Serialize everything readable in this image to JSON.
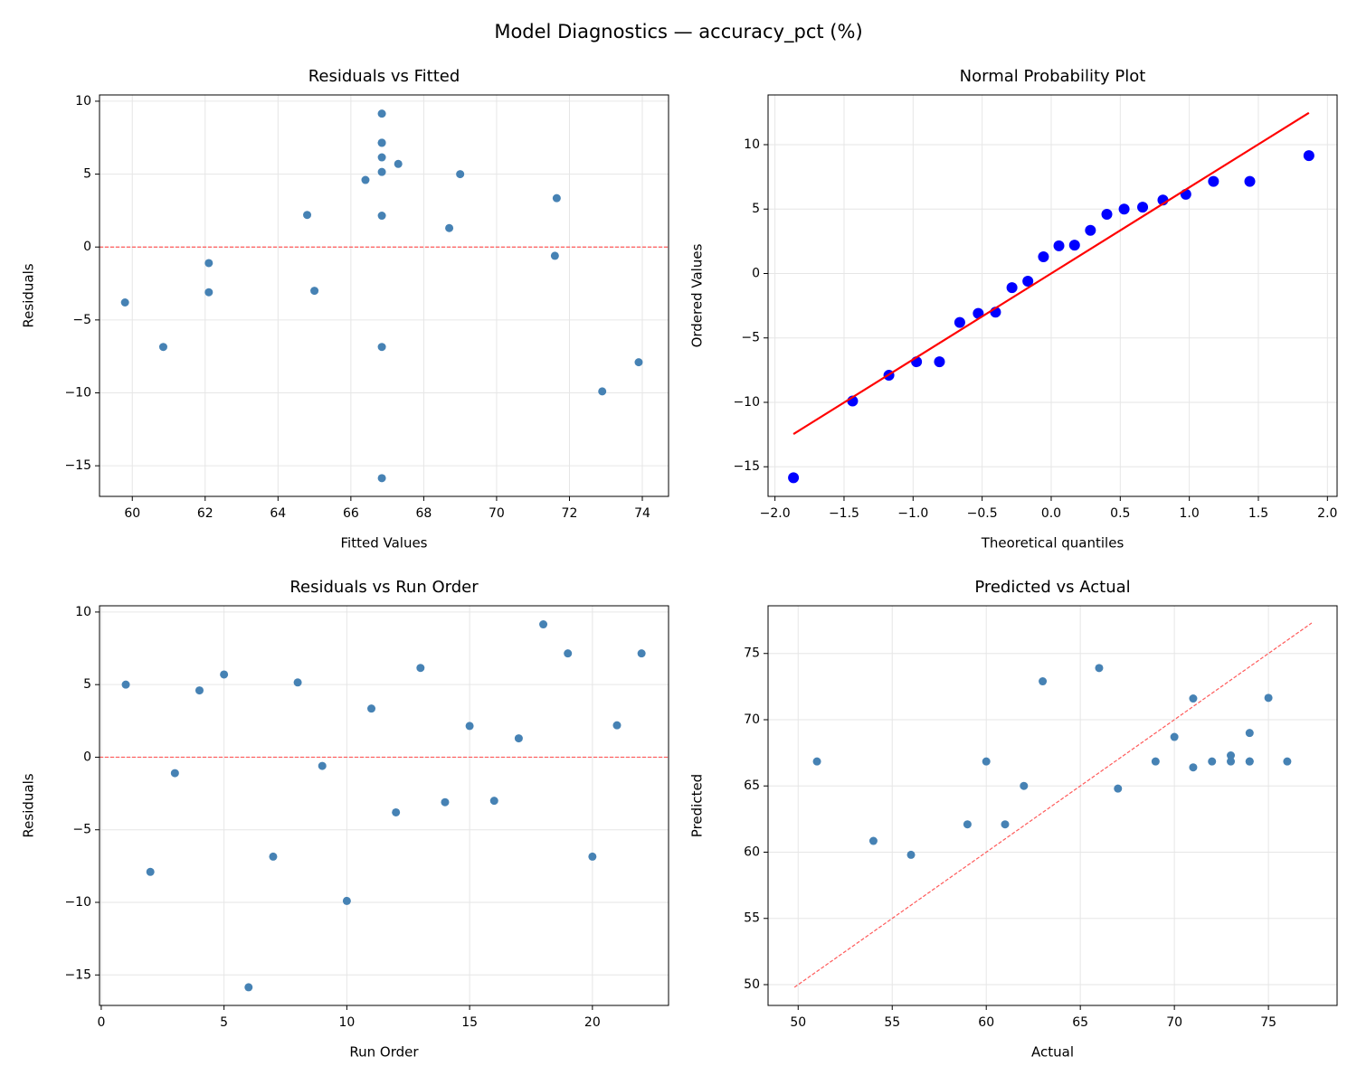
{
  "title": "Model Diagnostics — accuracy_pct (%)",
  "chart_data": [
    {
      "type": "scatter",
      "title": "Residuals vs Fitted",
      "xlabel": "Fitted Values",
      "ylabel": "Residuals",
      "x": [
        69.0,
        73.9,
        62.1,
        66.4,
        67.3,
        66.85,
        66.85,
        66.85,
        71.6,
        72.9,
        71.65,
        59.8,
        66.85,
        62.1,
        66.85,
        65.0,
        68.7,
        66.85,
        66.85,
        60.85,
        64.8,
        66.85
      ],
      "y": [
        5.0,
        -7.9,
        -1.1,
        4.6,
        5.7,
        -15.85,
        -6.85,
        5.15,
        -0.6,
        -9.9,
        3.35,
        -3.8,
        6.15,
        -3.1,
        2.15,
        -3.0,
        1.3,
        9.15,
        7.15,
        -6.85,
        2.2,
        7.15
      ],
      "color": "#4682b4",
      "hline": 0,
      "hline_color": "#ff5a5a",
      "xlim": [
        59.1,
        74.72
      ],
      "ylim": [
        -17.1,
        10.43
      ],
      "xticks": [
        60,
        62,
        64,
        66,
        68,
        70,
        72,
        74
      ],
      "yticks": [
        {
          "value": -15,
          "label": "−15"
        },
        {
          "value": -10,
          "label": "−10"
        },
        {
          "value": -5,
          "label": "−5"
        },
        0,
        5,
        10
      ],
      "grid": true
    },
    {
      "type": "scatter",
      "title": "Normal Probability Plot",
      "xlabel": "Theoretical quantiles",
      "ylabel": "Ordered Values",
      "x": [
        -1.866,
        -1.438,
        -1.175,
        -0.975,
        -0.809,
        -0.662,
        -0.528,
        -0.403,
        -0.284,
        -0.169,
        -0.056,
        0.056,
        0.169,
        0.284,
        0.403,
        0.528,
        0.662,
        0.809,
        0.975,
        1.175,
        1.438,
        1.866
      ],
      "y": [
        -15.85,
        -9.9,
        -7.9,
        -6.85,
        -6.85,
        -3.8,
        -3.1,
        -3.0,
        -1.1,
        -0.6,
        1.3,
        2.15,
        2.2,
        3.35,
        4.6,
        5.0,
        5.15,
        5.7,
        6.15,
        7.15,
        7.15,
        9.15
      ],
      "color": "#0000ff",
      "fit_line": {
        "x": [
          -1.866,
          1.866
        ],
        "y": [
          -12.46,
          12.47
        ],
        "color": "#ff0000"
      },
      "xlim": [
        -2.05,
        2.07
      ],
      "ylim": [
        -17.3,
        13.86
      ],
      "xticks": [
        {
          "value": -2,
          "label": "−2.0"
        },
        {
          "value": -1.5,
          "label": "−1.5"
        },
        {
          "value": -1,
          "label": "−1.0"
        },
        {
          "value": -0.5,
          "label": "−0.5"
        },
        {
          "value": 0,
          "label": "0.0"
        },
        0.5,
        {
          "value": 1,
          "label": "1.0"
        },
        1.5,
        {
          "value": 2,
          "label": "2.0"
        }
      ],
      "yticks": [
        {
          "value": -15,
          "label": "−15"
        },
        {
          "value": -10,
          "label": "−10"
        },
        {
          "value": -5,
          "label": "−5"
        },
        0,
        5,
        10
      ],
      "grid": true
    },
    {
      "type": "scatter",
      "title": "Residuals vs Run Order",
      "xlabel": "Run Order",
      "ylabel": "Residuals",
      "x": [
        1,
        2,
        3,
        4,
        5,
        6,
        7,
        8,
        9,
        10,
        11,
        12,
        13,
        14,
        15,
        16,
        17,
        18,
        19,
        20,
        21,
        22
      ],
      "y": [
        5.0,
        -7.9,
        -1.1,
        4.6,
        5.7,
        -15.85,
        -6.85,
        5.15,
        -0.6,
        -9.9,
        3.35,
        -3.8,
        6.15,
        -3.1,
        2.15,
        -3.0,
        1.3,
        9.15,
        7.15,
        -6.85,
        2.2,
        7.15
      ],
      "color": "#4682b4",
      "hline": 0,
      "hline_color": "#ff5a5a",
      "xlim": [
        -0.07,
        23.1
      ],
      "ylim": [
        -17.1,
        10.43
      ],
      "xticks": [
        0,
        5,
        10,
        15,
        20
      ],
      "yticks": [
        {
          "value": -15,
          "label": "−15"
        },
        {
          "value": -10,
          "label": "−10"
        },
        {
          "value": -5,
          "label": "−5"
        },
        0,
        5,
        10
      ],
      "grid": true
    },
    {
      "type": "scatter",
      "title": "Predicted vs Actual",
      "xlabel": "Actual",
      "ylabel": "Predicted",
      "x": [
        74,
        66,
        61,
        71,
        73,
        51,
        60,
        72,
        71,
        63,
        75,
        56,
        73,
        59,
        69,
        62,
        70,
        76,
        74,
        54,
        67,
        74
      ],
      "y": [
        69.0,
        73.9,
        62.1,
        66.4,
        67.3,
        66.85,
        66.85,
        66.85,
        71.6,
        72.9,
        71.65,
        59.8,
        66.85,
        62.1,
        66.85,
        65.0,
        68.7,
        66.85,
        66.85,
        60.85,
        64.8,
        66.85
      ],
      "color": "#4682b4",
      "reference_line": [
        49.8,
        77.3
      ],
      "reference_color": "#ff5a5a",
      "xlim": [
        48.4,
        78.65
      ],
      "ylim": [
        48.43,
        78.6
      ],
      "xticks": [
        50,
        55,
        60,
        65,
        70,
        75
      ],
      "yticks": [
        50,
        55,
        60,
        65,
        70,
        75
      ],
      "grid": true
    }
  ]
}
